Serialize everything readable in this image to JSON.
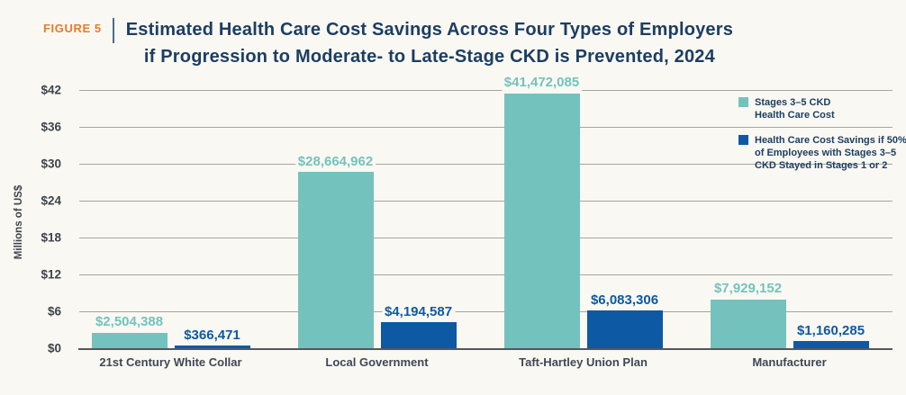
{
  "figure_label": "FIGURE 5",
  "title": {
    "line1": "Estimated Health Care Cost Savings Across Four Types of Employers",
    "line2": "if Progression to Moderate- to Late-Stage CKD is Prevented, 2024"
  },
  "y_axis": {
    "title": "Millions of US$",
    "tick_labels": [
      "$42",
      "$36",
      "$30",
      "$24",
      "$18",
      "$12",
      "$6",
      "$0"
    ]
  },
  "legend": {
    "items": [
      {
        "name": "Stages 3–5 CKD Health Care Cost",
        "color": "#74c2be",
        "lines": [
          "Stages 3–5 CKD",
          "Health Care Cost"
        ]
      },
      {
        "name": "Health Care Cost Savings if 50% of Employees with Stages 3–5 CKD Stayed in Stages 1 or 2",
        "color": "#0e59a3",
        "lines": [
          "Health Care Cost Savings if 50%",
          "of Employees with Stages 3–5",
          "CKD Stayed in Stages 1 or 2"
        ]
      }
    ]
  },
  "chart_data": {
    "type": "bar",
    "title": "Estimated Health Care Cost Savings Across Four Types of Employers if Progression to Moderate- to Late-Stage CKD is Prevented, 2024",
    "xlabel": "",
    "ylabel": "Millions of US$",
    "ylim_millions": [
      0,
      42
    ],
    "gridline_step_millions": 6,
    "grid": true,
    "legend_position": "upper-right",
    "categories": [
      "21st Century White Collar",
      "Local Government",
      "Taft-Hartley Union Plan",
      "Manufacturer"
    ],
    "series": [
      {
        "name": "Stages 3–5 CKD Health Care Cost",
        "color": "#74c2be",
        "values": [
          2504388,
          28664962,
          41472085,
          7929152
        ],
        "value_labels": [
          "$2,504,388",
          "$28,664,962",
          "$41,472,085",
          "$7,929,152"
        ]
      },
      {
        "name": "Health Care Cost Savings if 50% of Employees with Stages 3–5 CKD Stayed in Stages 1 or 2",
        "color": "#0e59a3",
        "values": [
          366471,
          4194587,
          6083306,
          1160285
        ],
        "value_labels": [
          "$366,471",
          "$4,194,587",
          "$6,083,306",
          "$1,160,285"
        ]
      }
    ]
  },
  "colors": {
    "background": "#faf8f2",
    "teal": "#74c2be",
    "blue": "#0e59a3",
    "navy_title": "#1c3e63",
    "orange_label": "#e87b2a",
    "axis_text": "#3d444d",
    "category_text": "#3d4956",
    "gridline": "#a5a5a1",
    "axis_line": "#56575b"
  }
}
